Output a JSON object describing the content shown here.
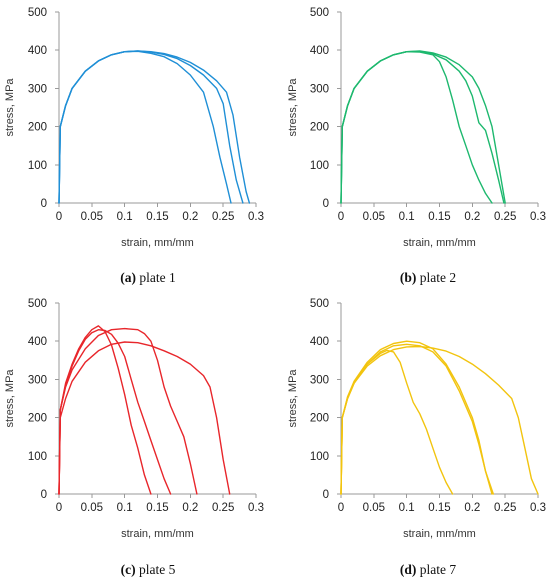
{
  "chart_data": [
    {
      "type": "line",
      "xlabel": "strain, mm/mm",
      "ylabel": "stress, MPa",
      "xlim": [
        0,
        0.3
      ],
      "ylim": [
        0,
        500
      ],
      "xticks": [
        "0",
        "0.05",
        "0.1",
        "0.15",
        "0.2",
        "0.25",
        "0.3"
      ],
      "yticks": [
        "0",
        "100",
        "200",
        "300",
        "400",
        "500"
      ],
      "color": "#1f8fd6",
      "caption_tag": "(a)",
      "caption_text": " plate 1",
      "series": [
        {
          "x": [
            0,
            0.002,
            0.01,
            0.02,
            0.04,
            0.06,
            0.08,
            0.1,
            0.12,
            0.14,
            0.16,
            0.18,
            0.2,
            0.22,
            0.235,
            0.245,
            0.255,
            0.262
          ],
          "y": [
            0,
            200,
            255,
            300,
            345,
            372,
            388,
            396,
            397,
            392,
            383,
            365,
            335,
            290,
            200,
            120,
            50,
            0
          ]
        },
        {
          "x": [
            0,
            0.002,
            0.01,
            0.02,
            0.04,
            0.06,
            0.08,
            0.1,
            0.12,
            0.14,
            0.16,
            0.18,
            0.2,
            0.22,
            0.24,
            0.25,
            0.26,
            0.27,
            0.28
          ],
          "y": [
            0,
            200,
            255,
            300,
            345,
            372,
            388,
            396,
            398,
            395,
            389,
            378,
            360,
            335,
            300,
            260,
            150,
            60,
            0
          ]
        },
        {
          "x": [
            0,
            0.002,
            0.01,
            0.02,
            0.04,
            0.06,
            0.08,
            0.1,
            0.12,
            0.14,
            0.16,
            0.18,
            0.2,
            0.22,
            0.24,
            0.255,
            0.265,
            0.275,
            0.285,
            0.29
          ],
          "y": [
            0,
            200,
            255,
            300,
            345,
            372,
            388,
            396,
            398,
            396,
            391,
            382,
            368,
            348,
            320,
            290,
            230,
            120,
            30,
            0
          ]
        }
      ]
    },
    {
      "type": "line",
      "xlabel": "strain, mm/mm",
      "ylabel": "stress, MPa",
      "xlim": [
        0,
        0.3
      ],
      "ylim": [
        0,
        500
      ],
      "xticks": [
        "0",
        "0.05",
        "0.1",
        "0.15",
        "0.2",
        "0.25",
        "0.3"
      ],
      "yticks": [
        "0",
        "100",
        "200",
        "300",
        "400",
        "500"
      ],
      "color": "#1db86e",
      "caption_tag": "(b)",
      "caption_text": " plate 2",
      "series": [
        {
          "x": [
            0,
            0.002,
            0.01,
            0.02,
            0.04,
            0.06,
            0.08,
            0.1,
            0.12,
            0.14,
            0.15,
            0.16,
            0.17,
            0.18,
            0.19,
            0.2,
            0.21,
            0.22,
            0.23
          ],
          "y": [
            0,
            200,
            255,
            300,
            345,
            372,
            388,
            396,
            395,
            388,
            370,
            330,
            270,
            200,
            150,
            100,
            60,
            25,
            0
          ]
        },
        {
          "x": [
            0,
            0.002,
            0.01,
            0.02,
            0.04,
            0.06,
            0.08,
            0.1,
            0.12,
            0.14,
            0.16,
            0.18,
            0.19,
            0.2,
            0.21,
            0.22,
            0.23,
            0.24,
            0.248
          ],
          "y": [
            0,
            200,
            255,
            300,
            345,
            372,
            388,
            396,
            397,
            390,
            375,
            345,
            320,
            280,
            210,
            190,
            130,
            60,
            0
          ]
        },
        {
          "x": [
            0,
            0.002,
            0.01,
            0.02,
            0.04,
            0.06,
            0.08,
            0.1,
            0.12,
            0.14,
            0.16,
            0.18,
            0.2,
            0.21,
            0.22,
            0.23,
            0.24,
            0.25
          ],
          "y": [
            0,
            200,
            255,
            300,
            345,
            372,
            388,
            396,
            398,
            393,
            382,
            362,
            330,
            300,
            255,
            200,
            100,
            0
          ]
        }
      ]
    },
    {
      "type": "line",
      "xlabel": "strain, mm/mm",
      "ylabel": "stress, MPa",
      "xlim": [
        0,
        0.3
      ],
      "ylim": [
        0,
        500
      ],
      "xticks": [
        "0",
        "0.05",
        "0.1",
        "0.15",
        "0.2",
        "0.25",
        "0.3"
      ],
      "yticks": [
        "0",
        "100",
        "200",
        "300",
        "400",
        "500"
      ],
      "color": "#e8262b",
      "caption_tag": "(c)",
      "caption_text": " plate 5",
      "series": [
        {
          "x": [
            0,
            0.002,
            0.01,
            0.02,
            0.03,
            0.04,
            0.05,
            0.06,
            0.07,
            0.08,
            0.09,
            0.1,
            0.11,
            0.12,
            0.13,
            0.14
          ],
          "y": [
            0,
            220,
            290,
            340,
            380,
            410,
            430,
            440,
            425,
            390,
            330,
            260,
            180,
            120,
            50,
            0
          ]
        },
        {
          "x": [
            0,
            0.002,
            0.01,
            0.02,
            0.03,
            0.04,
            0.05,
            0.06,
            0.07,
            0.08,
            0.09,
            0.1,
            0.11,
            0.12,
            0.13,
            0.14,
            0.15,
            0.16,
            0.17
          ],
          "y": [
            0,
            220,
            285,
            335,
            375,
            405,
            422,
            430,
            428,
            418,
            395,
            360,
            300,
            240,
            190,
            140,
            90,
            40,
            0
          ]
        },
        {
          "x": [
            0,
            0.002,
            0.01,
            0.02,
            0.04,
            0.06,
            0.08,
            0.1,
            0.12,
            0.13,
            0.14,
            0.15,
            0.16,
            0.17,
            0.18,
            0.19,
            0.2,
            0.21
          ],
          "y": [
            0,
            220,
            280,
            325,
            380,
            415,
            430,
            433,
            430,
            420,
            400,
            350,
            280,
            230,
            190,
            150,
            80,
            0
          ]
        },
        {
          "x": [
            0,
            0.002,
            0.01,
            0.02,
            0.04,
            0.06,
            0.08,
            0.1,
            0.12,
            0.14,
            0.16,
            0.18,
            0.2,
            0.22,
            0.23,
            0.24,
            0.25,
            0.26
          ],
          "y": [
            0,
            200,
            250,
            295,
            345,
            375,
            392,
            398,
            396,
            388,
            375,
            360,
            340,
            310,
            280,
            200,
            90,
            0
          ]
        }
      ]
    },
    {
      "type": "line",
      "xlabel": "strain, mm/mm",
      "ylabel": "stress, MPa",
      "xlim": [
        0,
        0.3
      ],
      "ylim": [
        0,
        500
      ],
      "xticks": [
        "0",
        "0.05",
        "0.1",
        "0.15",
        "0.2",
        "0.25",
        "0.3"
      ],
      "yticks": [
        "0",
        "100",
        "200",
        "300",
        "400",
        "500"
      ],
      "color": "#f2c40f",
      "caption_tag": "(d)",
      "caption_text": " plate 7",
      "series": [
        {
          "x": [
            0,
            0.002,
            0.01,
            0.02,
            0.04,
            0.06,
            0.07,
            0.08,
            0.09,
            0.1,
            0.11,
            0.12,
            0.13,
            0.14,
            0.15,
            0.16,
            0.17
          ],
          "y": [
            0,
            200,
            250,
            290,
            340,
            368,
            376,
            372,
            345,
            290,
            240,
            210,
            170,
            120,
            70,
            30,
            0
          ]
        },
        {
          "x": [
            0,
            0.002,
            0.01,
            0.02,
            0.04,
            0.06,
            0.08,
            0.1,
            0.12,
            0.14,
            0.16,
            0.18,
            0.2,
            0.21,
            0.22,
            0.23
          ],
          "y": [
            0,
            200,
            255,
            295,
            345,
            378,
            394,
            400,
            396,
            380,
            340,
            280,
            200,
            140,
            60,
            0
          ]
        },
        {
          "x": [
            0,
            0.002,
            0.01,
            0.02,
            0.04,
            0.06,
            0.08,
            0.1,
            0.12,
            0.14,
            0.16,
            0.18,
            0.2,
            0.21,
            0.22,
            0.232
          ],
          "y": [
            0,
            200,
            252,
            292,
            340,
            372,
            388,
            392,
            388,
            372,
            335,
            270,
            190,
            130,
            60,
            0
          ]
        },
        {
          "x": [
            0,
            0.002,
            0.01,
            0.02,
            0.04,
            0.06,
            0.08,
            0.1,
            0.12,
            0.14,
            0.16,
            0.18,
            0.2,
            0.22,
            0.24,
            0.26,
            0.27,
            0.28,
            0.29,
            0.3
          ],
          "y": [
            0,
            200,
            250,
            290,
            335,
            362,
            378,
            385,
            386,
            382,
            374,
            360,
            340,
            315,
            285,
            250,
            200,
            120,
            40,
            0
          ]
        }
      ]
    }
  ]
}
